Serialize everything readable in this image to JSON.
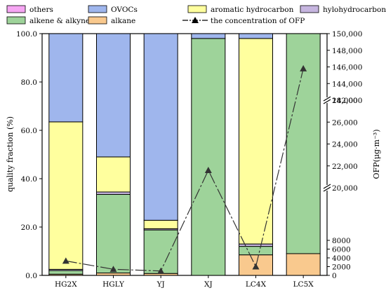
{
  "chart_data": {
    "type": "bar",
    "stacked": true,
    "categories": [
      "HG2X",
      "HGLY",
      "YJ",
      "XJ",
      "LC4X",
      "LC5X"
    ],
    "series": [
      {
        "name": "alkane",
        "color": "#f9c98e",
        "values": [
          0.5,
          1.0,
          0.8,
          0.0,
          8.5,
          9.0
        ]
      },
      {
        "name": "alkene & alkyne",
        "color": "#9ed39a",
        "values": [
          1.5,
          32.5,
          18.0,
          98.0,
          3.5,
          91.0
        ]
      },
      {
        "name": "hylohydrocarbon",
        "color": "#c6b5df",
        "values": [
          0.5,
          1.0,
          0.5,
          0.0,
          1.0,
          0.0
        ]
      },
      {
        "name": "aromatic hydrocarbon",
        "color": "#ffff9e",
        "values": [
          61.0,
          14.5,
          3.5,
          0.0,
          85.0,
          0.0
        ]
      },
      {
        "name": "OVOCs",
        "color": "#9fb6ed",
        "values": [
          36.5,
          51.0,
          77.2,
          2.0,
          2.0,
          0.0
        ]
      },
      {
        "name": "others",
        "color": "#f6a6f3",
        "values": [
          0.0,
          0.0,
          0.0,
          0.0,
          0.0,
          0.0
        ]
      }
    ],
    "line": {
      "name": "the concentration of OFP",
      "values": [
        3300,
        1400,
        1000,
        21600,
        2000,
        145800
      ]
    },
    "ylabel_left": "quality fraction (%)",
    "ylabel_right": "OFP(μg·m⁻³)",
    "ylim_left": [
      0,
      100
    ],
    "left_ticks": [
      "0.0",
      "20.0",
      "40.0",
      "60.0",
      "80.0",
      "100.0"
    ],
    "right_axis_broken": true,
    "right_segments": [
      [
        0,
        20000
      ],
      [
        20000,
        28000
      ],
      [
        142000,
        150000
      ]
    ],
    "right_ticks_low": [
      "0",
      "2000",
      "4000",
      "6000",
      "8000"
    ],
    "right_ticks_mid": [
      "20,000",
      "22,000",
      "24,000",
      "26,000",
      "28,000"
    ],
    "right_ticks_high": [
      "142,000",
      "144,000",
      "146,000",
      "148,000",
      "150,000"
    ],
    "legend_placement": "top",
    "legend_order": [
      "others",
      "OVOCs",
      "aromatic hydrocarbon",
      "hylohydrocarbon",
      "alkene & alkyne",
      "alkane",
      "the concentration of OFP"
    ]
  }
}
